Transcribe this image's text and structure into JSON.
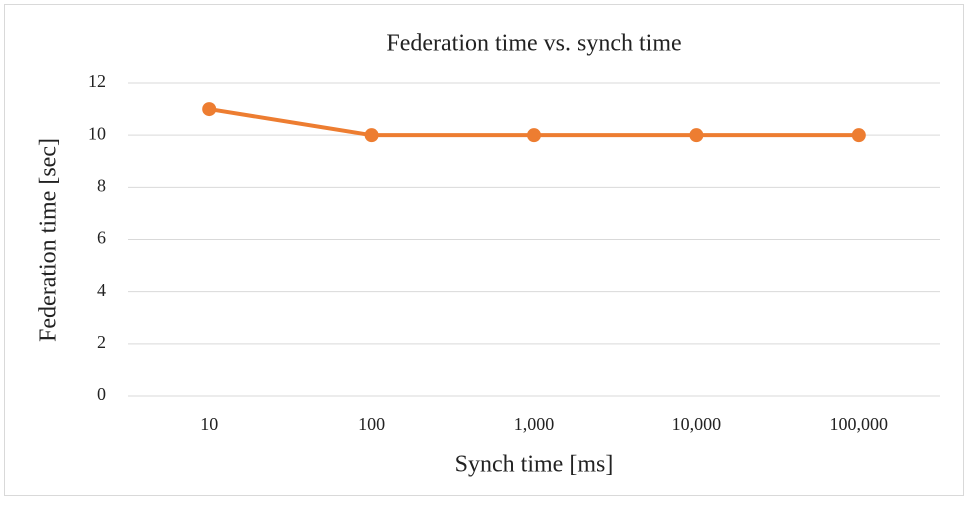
{
  "chart_data": {
    "type": "line",
    "title": "Federation time vs. synch time",
    "x_label": "Synch time [ms]",
    "y_label": "Federation time [sec]",
    "categories": [
      "10",
      "100",
      "1,000",
      "10,000",
      "100,000"
    ],
    "series": [
      {
        "name": "Federation time",
        "color": "#ed7d31",
        "values": [
          11,
          10,
          10,
          10,
          10
        ]
      }
    ],
    "ylim": [
      0,
      12
    ],
    "yticks": [
      0,
      2,
      4,
      6,
      8,
      10,
      12
    ],
    "grid": true
  }
}
